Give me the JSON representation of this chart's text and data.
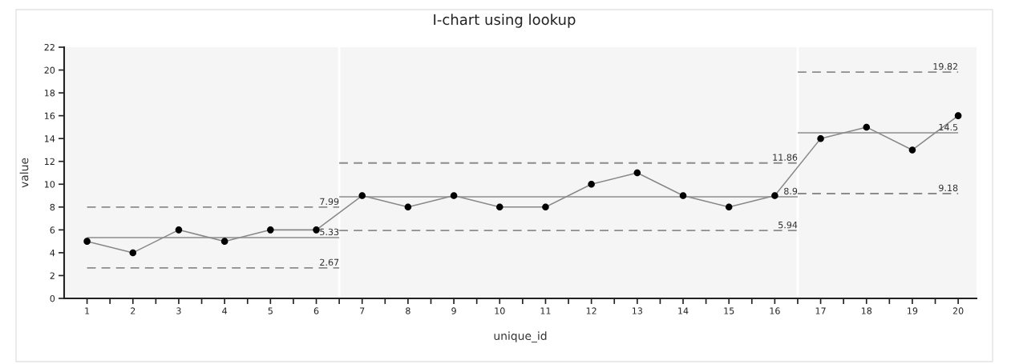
{
  "chart_data": {
    "type": "line",
    "title": "I-chart using lookup",
    "xlabel": "unique_id",
    "ylabel": "value",
    "x": [
      1,
      2,
      3,
      4,
      5,
      6,
      7,
      8,
      9,
      10,
      11,
      12,
      13,
      14,
      15,
      16,
      17,
      18,
      19,
      20
    ],
    "xlim": [
      0.5,
      20.4
    ],
    "xticks": [
      1,
      {
        "value": 1.5,
        "label": null
      },
      2,
      {
        "value": 2.5,
        "label": null
      },
      3,
      {
        "value": 3.5,
        "label": null
      },
      4,
      {
        "value": 4.5,
        "label": null
      },
      5,
      {
        "value": 5.5,
        "label": null
      },
      6,
      {
        "value": 6.5,
        "label": null
      },
      7,
      {
        "value": 7.5,
        "label": null
      },
      8,
      {
        "value": 8.5,
        "label": null
      },
      9,
      {
        "value": 9.5,
        "label": null
      },
      10,
      {
        "value": 10.5,
        "label": null
      },
      11,
      {
        "value": 11.5,
        "label": null
      },
      12,
      {
        "value": 12.5,
        "label": null
      },
      13,
      {
        "value": 13.5,
        "label": null
      },
      14,
      {
        "value": 14.5,
        "label": null
      },
      15,
      {
        "value": 15.5,
        "label": null
      },
      16,
      {
        "value": 16.5,
        "label": null
      },
      17,
      {
        "value": 17.5,
        "label": null
      },
      18,
      {
        "value": 18.5,
        "label": null
      },
      19,
      {
        "value": 19.5,
        "label": null
      },
      20
    ],
    "ylim": [
      0,
      22
    ],
    "yticks": [
      0,
      2,
      4,
      6,
      8,
      10,
      12,
      14,
      16,
      18,
      20,
      22
    ],
    "series": [
      {
        "color": "#888888",
        "values": [
          5,
          4,
          6,
          5,
          6,
          6,
          9,
          8,
          9,
          8,
          8,
          10,
          11,
          9,
          8,
          9,
          14,
          15,
          13,
          16
        ]
      },
      {
        "type": "scatter",
        "marker": "circle",
        "color": "#000000",
        "values": [
          5,
          4,
          6,
          5,
          6,
          6,
          9,
          8,
          9,
          8,
          8,
          10,
          11,
          9,
          8,
          9,
          14,
          15,
          13,
          16
        ]
      },
      {
        "x": [
          1,
          6.5
        ],
        "values": [
          7.99,
          7.99
        ],
        "color": "#8c8c8c",
        "line_style": "dashed",
        "value_labels": [
          null,
          "7.99"
        ]
      },
      {
        "x": [
          1,
          6.5
        ],
        "values": [
          5.33,
          5.33
        ],
        "color": "#8c8c8c",
        "value_labels": [
          null,
          "5.33"
        ]
      },
      {
        "x": [
          1,
          6.5
        ],
        "values": [
          2.67,
          2.67
        ],
        "color": "#8c8c8c",
        "line_style": "dashed",
        "value_labels": [
          null,
          "2.67"
        ]
      },
      {
        "x": [
          6.5,
          16.5
        ],
        "values": [
          11.86,
          11.86
        ],
        "color": "#8c8c8c",
        "line_style": "dashed",
        "value_labels": [
          null,
          "11.86"
        ]
      },
      {
        "x": [
          6.5,
          16.5
        ],
        "values": [
          8.9,
          8.9
        ],
        "color": "#8c8c8c",
        "value_labels": [
          null,
          "8.9"
        ]
      },
      {
        "x": [
          6.5,
          16.5
        ],
        "values": [
          5.94,
          5.94
        ],
        "color": "#8c8c8c",
        "line_style": "dashed",
        "value_labels": [
          null,
          "5.94"
        ]
      },
      {
        "x": [
          16.5,
          20
        ],
        "values": [
          19.82,
          19.82
        ],
        "color": "#8c8c8c",
        "line_style": "dashed",
        "value_labels": [
          null,
          "19.82"
        ]
      },
      {
        "x": [
          16.5,
          20
        ],
        "values": [
          14.5,
          14.5
        ],
        "color": "#8c8c8c",
        "value_labels": [
          null,
          "14.5"
        ]
      },
      {
        "x": [
          16.5,
          20
        ],
        "values": [
          9.18,
          9.18
        ],
        "color": "#8c8c8c",
        "line_style": "dashed",
        "value_labels": [
          null,
          "9.18"
        ]
      }
    ],
    "ref_lines": [
      {
        "axis": "x",
        "value": 6.5,
        "color": "#ffffff"
      },
      {
        "axis": "x",
        "value": 16.5,
        "color": "#ffffff"
      }
    ]
  }
}
